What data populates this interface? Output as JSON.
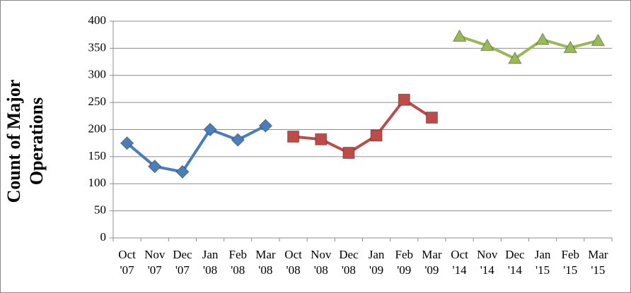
{
  "chart_data": {
    "type": "line",
    "y_label": "Count of Major Operations",
    "categories": [
      "Oct '07",
      "Nov '07",
      "Dec '07",
      "Jan '08",
      "Feb '08",
      "Mar '08",
      "Oct '08",
      "Nov '08",
      "Dec '08",
      "Jan '09",
      "Feb '09",
      "Mar '09",
      "Oct '14",
      "Nov '14",
      "Dec '14",
      "Jan '15",
      "Feb '15",
      "Mar '15"
    ],
    "series": [
      {
        "color": "#4a7ebb",
        "marker": "diamond",
        "values": [
          175,
          132,
          122,
          200,
          181,
          207,
          null,
          null,
          null,
          null,
          null,
          null,
          null,
          null,
          null,
          null,
          null,
          null
        ]
      },
      {
        "color": "#be4b48",
        "marker": "square",
        "values": [
          null,
          null,
          null,
          null,
          null,
          null,
          187,
          182,
          157,
          189,
          255,
          222,
          null,
          null,
          null,
          null,
          null,
          null
        ]
      },
      {
        "color": "#98b954",
        "marker": "triangle",
        "values": [
          null,
          null,
          null,
          null,
          null,
          null,
          null,
          null,
          null,
          null,
          null,
          null,
          372,
          355,
          331,
          366,
          351,
          364
        ]
      }
    ],
    "ylim": [
      0,
      400
    ],
    "yticks": [
      0,
      50,
      100,
      150,
      200,
      250,
      300,
      350,
      400
    ],
    "grid": true
  }
}
